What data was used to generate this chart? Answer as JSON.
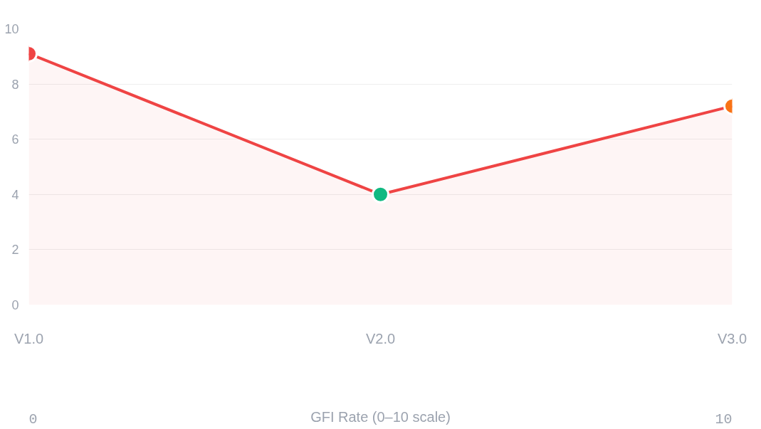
{
  "chart_data": {
    "type": "area",
    "categories": [
      "V1.0",
      "V2.0",
      "V3.0"
    ],
    "series": [
      {
        "color": "#ef4444",
        "colors": [
          "#ef4444",
          "#10b981",
          "#f97316"
        ],
        "values": [
          9.1,
          4.0,
          7.2
        ]
      }
    ],
    "ylim": [
      0,
      10
    ],
    "yticks": [
      0,
      2,
      4,
      6,
      8,
      10
    ],
    "grid": "y",
    "marker": "circle",
    "line_style": "solid",
    "xlabel": "GFI Rate (0–10 scale)",
    "annotations": [
      "0",
      "10"
    ]
  }
}
